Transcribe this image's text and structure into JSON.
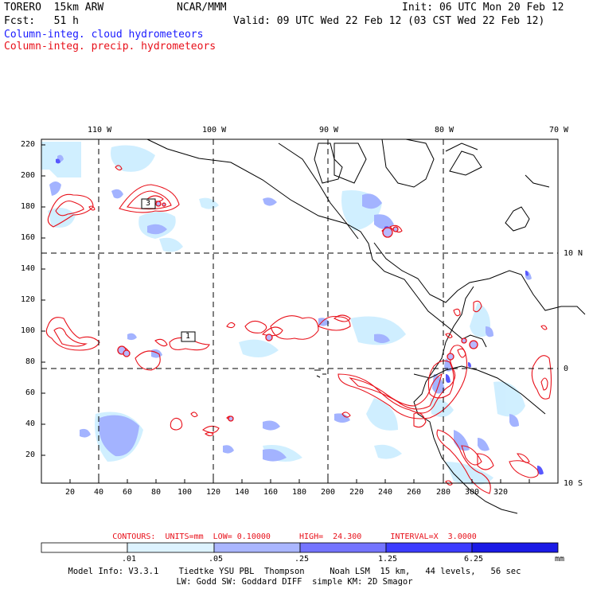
{
  "header": {
    "model": "TORERO  15km ARW",
    "org": "NCAR/MMM",
    "init": "Init: 06 UTC Mon 20 Feb 12",
    "fcst": "Fcst:   51 h",
    "valid": "Valid: 09 UTC Wed 22 Feb 12 (03 CST Wed 22 Feb 12)",
    "legend_cloud": "Column-integ. cloud hydrometeors",
    "legend_precip": "Column-integ. precip. hydrometeors"
  },
  "map": {
    "lon_labels": [
      "110 W",
      "100 W",
      "90 W",
      "80 W",
      "70 W"
    ],
    "lat_labels": [
      "10 N",
      "0",
      "10 S"
    ],
    "y_ticks": [
      "220",
      "200",
      "180",
      "160",
      "140",
      "120",
      "100",
      "80",
      "60",
      "40",
      "20"
    ],
    "x_ticks": [
      "20",
      "40",
      "60",
      "80",
      "100",
      "120",
      "140",
      "160",
      "180",
      "200",
      "220",
      "240",
      "260",
      "280",
      "300",
      "320"
    ],
    "boxes": [
      "3",
      "1"
    ]
  },
  "contours_info": "CONTOURS:  UNITS=mm  LOW= 0.10000      HIGH=  24.300      INTERVAL=X  3.0000",
  "colorbar": {
    "labels": [
      ".01",
      ".05",
      ".25",
      "1.25",
      "6.25"
    ],
    "unit": "mm",
    "colors": [
      "#ffffff",
      "#ddf3ff",
      "#aab6ff",
      "#7474ff",
      "#3c3cff",
      "#1a1ae6"
    ]
  },
  "model_info": {
    "line1": "Model Info: V3.3.1    Tiedtke YSU PBL  Thompson     Noah LSM  15 km,   44 levels,   56 sec",
    "line2": "LW: Godd SW: Goddard DIFF  simple KM: 2D Smagor"
  },
  "colors": {
    "cloud_label": "#1a1aff",
    "precip_contour": "#e8101a"
  }
}
